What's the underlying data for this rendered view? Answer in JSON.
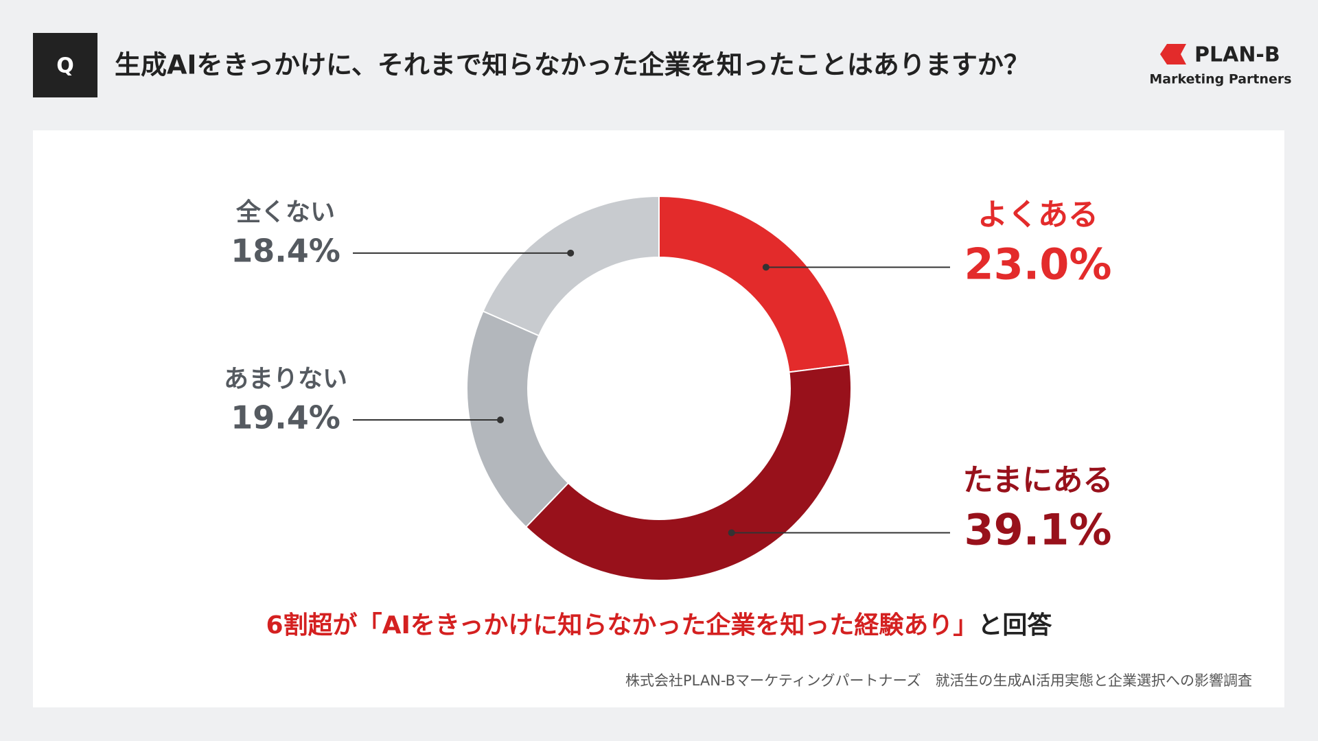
{
  "header": {
    "badge": "Q"
  },
  "logo": {
    "name": "PLAN-B",
    "tagline": "Marketing Partners"
  },
  "conclusion": {
    "highlight": "6割超が「AIをきっかけに知らなかった企業を知った経験あり」",
    "rest": "と回答"
  },
  "source": "株式会社PLAN-Bマーケティングパートナーズ　就活生の生成AI活用実態と企業選択への影響調査",
  "chart_data": {
    "type": "donut",
    "title": "生成AIをきっかけに、それまで知らなかった企業を知ったことはありますか？",
    "categories": [
      "よくある",
      "たまにある",
      "あまりない",
      "全くない"
    ],
    "values": [
      23.0,
      39.1,
      19.4,
      18.4
    ],
    "value_labels": [
      "23.0%",
      "39.1%",
      "19.4%",
      "18.4%"
    ],
    "colors": [
      "#e32b2b",
      "#98111b",
      "#b3b7bc",
      "#c8cbcf"
    ],
    "label_colors": [
      "#e32b2b",
      "#98111b",
      "#555a60",
      "#555a60"
    ]
  }
}
